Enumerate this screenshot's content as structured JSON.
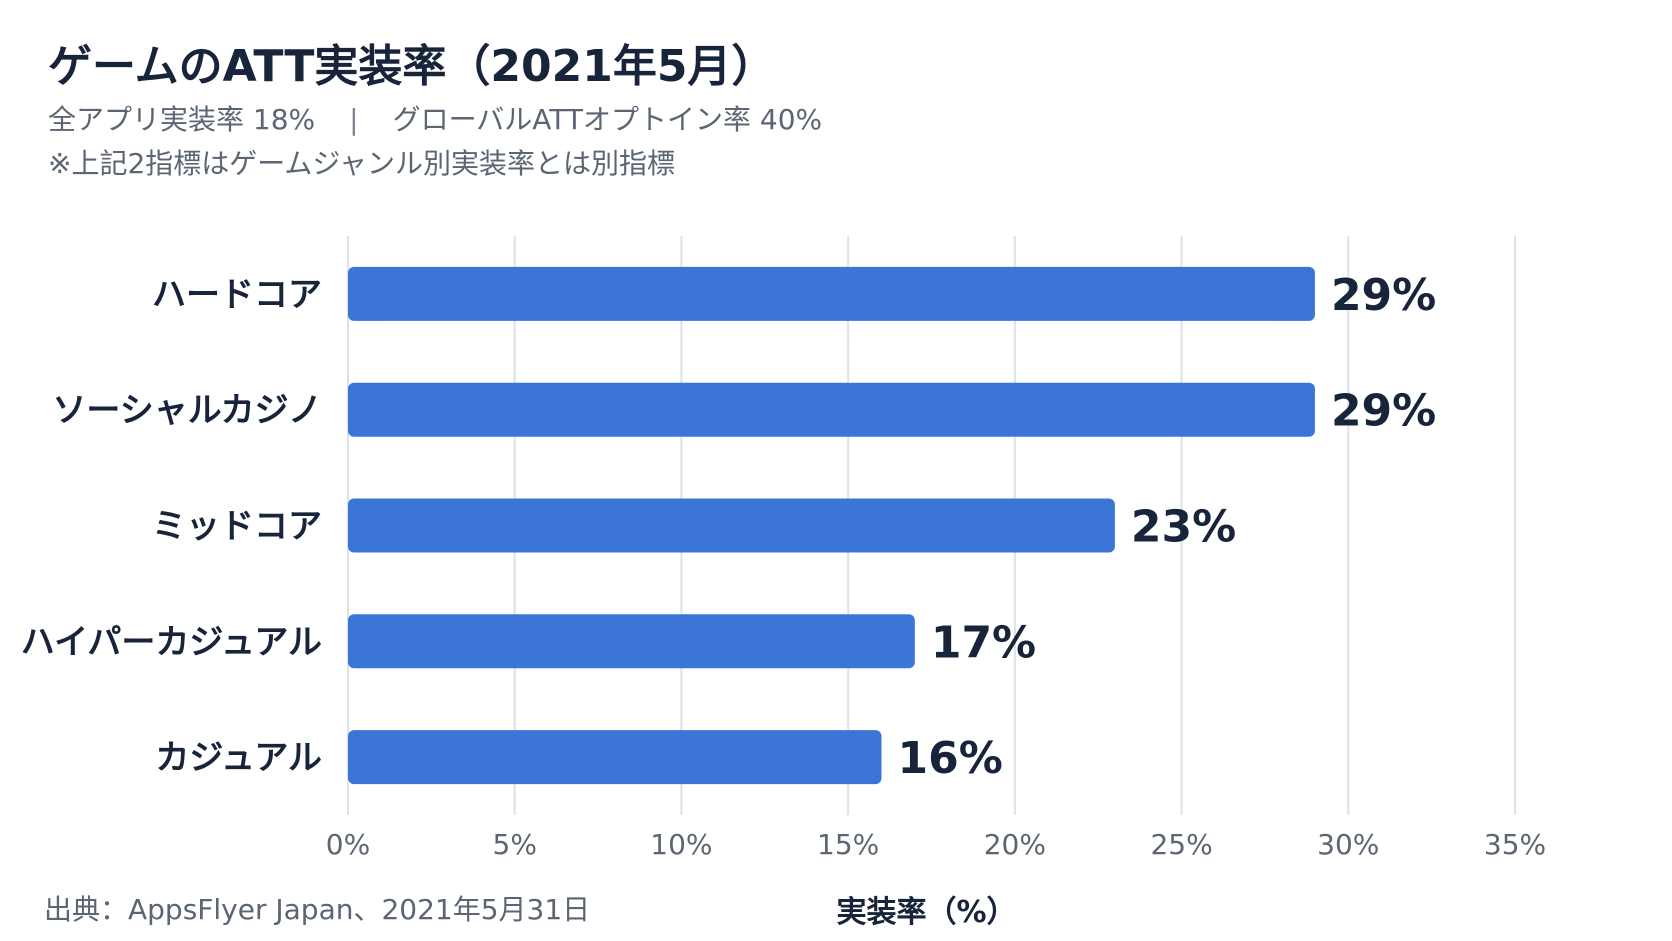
{
  "title": "ゲームのATT実装率（2021年5月）",
  "subtitle": {
    "left": "全アプリ実装率 18%",
    "separator": "|",
    "right": "グローバルATTオプトイン率 40%"
  },
  "note": "※上記2指標はゲームジャンル別実装率とは別指標",
  "source": "出典：AppsFlyer Japan、2021年5月31日",
  "colors": {
    "bar": "#3b76d6",
    "grid": "#dbe3ea",
    "text": "#18243a"
  },
  "chart_data": {
    "type": "bar",
    "orientation": "horizontal",
    "categories": [
      "ハードコア",
      "ソーシャルカジノ",
      "ミッドコア",
      "ハイパーカジュアル",
      "カジュアル"
    ],
    "values": [
      29,
      29,
      23,
      17,
      16
    ],
    "value_labels": [
      "29%",
      "29%",
      "23%",
      "17%",
      "16%"
    ],
    "xlabel": "実装率（%）",
    "xlim": [
      0,
      35
    ],
    "xticks": [
      0,
      5,
      10,
      15,
      20,
      25,
      30,
      35
    ],
    "xtick_labels": [
      "0%",
      "5%",
      "10%",
      "15%",
      "20%",
      "25%",
      "30%",
      "35%"
    ],
    "grid": true
  }
}
